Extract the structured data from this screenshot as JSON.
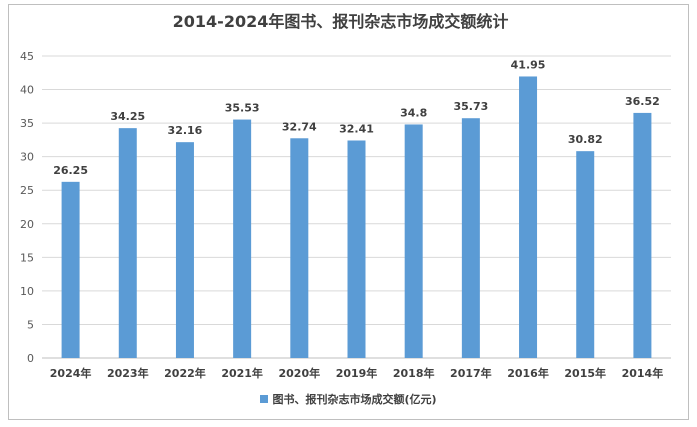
{
  "chart_data": {
    "type": "bar",
    "title": "2014-2024年图书、报刊杂志市场成交额统计",
    "categories": [
      "2024年",
      "2023年",
      "2022年",
      "2021年",
      "2020年",
      "2019年",
      "2018年",
      "2017年",
      "2016年",
      "2015年",
      "2014年"
    ],
    "series": [
      {
        "name": "图书、报刊杂志市场成交额(亿元)",
        "values": [
          26.25,
          34.25,
          32.16,
          35.53,
          32.74,
          32.41,
          34.8,
          35.73,
          41.95,
          30.82,
          36.52
        ],
        "labels": [
          "26.25",
          "34.25",
          "32.16",
          "35.53",
          "32.74",
          "32.41",
          "34.8",
          "35.73",
          "41.95",
          "30.82",
          "36.52"
        ],
        "color": "#5b9bd5"
      }
    ],
    "ylim": [
      0,
      45
    ],
    "yticks": [
      "0",
      "5",
      "10",
      "15",
      "20",
      "25",
      "30",
      "35",
      "40",
      "45"
    ],
    "grid": true,
    "legend": "bottom"
  }
}
